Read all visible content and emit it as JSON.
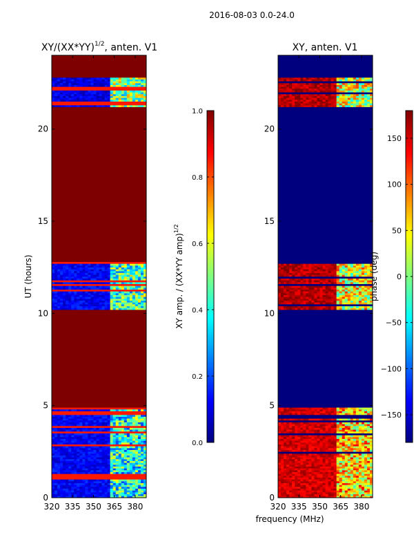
{
  "figure": {
    "suptitle": "2016-08-03 0.0-24.0",
    "xlabel_shared": "frequency (MHz)"
  },
  "colormap": {
    "name": "jet",
    "stops": [
      "#00007f",
      "#0000ff",
      "#007fff",
      "#00ffff",
      "#7fff7f",
      "#ffff00",
      "#ff7f00",
      "#ff0000",
      "#7f0000"
    ]
  },
  "chart_data": [
    {
      "type": "heatmap",
      "title_main": "XY/(XX*YY)",
      "title_exp": "1/2",
      "title_tail": ", anten. V1",
      "xlabel": "",
      "ylabel": "UT (hours)",
      "xlim": [
        320,
        388
      ],
      "ylim": [
        0,
        24
      ],
      "x_ticks": [
        320,
        335,
        350,
        365,
        380
      ],
      "y_ticks": [
        0,
        5,
        10,
        15,
        20
      ],
      "colorbar": {
        "label_main": "XY amp. / (XX*YY amp)",
        "label_exp": "1/2",
        "range": [
          0.0,
          1.0
        ],
        "ticks": [
          "0.0",
          "0.2",
          "0.4",
          "0.6",
          "0.8",
          "1.0"
        ]
      },
      "value_bands": [
        {
          "from_hour": 0.0,
          "to_hour": 4.9,
          "low_freq_value": 0.12,
          "high_freq_value": 0.4
        },
        {
          "from_hour": 4.9,
          "to_hour": 10.2,
          "low_freq_value": 1.0,
          "high_freq_value": 1.0
        },
        {
          "from_hour": 10.2,
          "to_hour": 12.8,
          "low_freq_value": 0.12,
          "high_freq_value": 0.45
        },
        {
          "from_hour": 12.8,
          "to_hour": 21.2,
          "low_freq_value": 1.0,
          "high_freq_value": 1.0
        },
        {
          "from_hour": 21.2,
          "to_hour": 22.8,
          "low_freq_value": 0.1,
          "high_freq_value": 0.5
        },
        {
          "from_hour": 22.8,
          "to_hour": 24.0,
          "low_freq_value": 1.0,
          "high_freq_value": 1.0
        }
      ]
    },
    {
      "type": "heatmap",
      "title_main": "XY, anten. V1",
      "xlabel": "frequency (MHz)",
      "ylabel": "",
      "xlim": [
        320,
        388
      ],
      "ylim": [
        0,
        24
      ],
      "x_ticks": [
        320,
        335,
        350,
        365,
        380
      ],
      "y_ticks": [
        0,
        5,
        10,
        15,
        20
      ],
      "colorbar": {
        "label": "phase (deg)",
        "range": [
          -180,
          180
        ],
        "ticks": [
          "−150",
          "−100",
          "−50",
          "0",
          "50",
          "100",
          "150"
        ]
      },
      "value_bands": [
        {
          "from_hour": 0.0,
          "to_hour": 4.9,
          "low_freq_value": 150,
          "high_freq_value": 60
        },
        {
          "from_hour": 4.9,
          "to_hour": 10.2,
          "low_freq_value": -180,
          "high_freq_value": -180
        },
        {
          "from_hour": 10.2,
          "to_hour": 12.8,
          "low_freq_value": 160,
          "high_freq_value": 40
        },
        {
          "from_hour": 12.8,
          "to_hour": 21.2,
          "low_freq_value": -180,
          "high_freq_value": -180
        },
        {
          "from_hour": 21.2,
          "to_hour": 22.8,
          "low_freq_value": 160,
          "high_freq_value": 30
        },
        {
          "from_hour": 22.8,
          "to_hour": 24.0,
          "low_freq_value": -180,
          "high_freq_value": -180
        }
      ]
    }
  ]
}
